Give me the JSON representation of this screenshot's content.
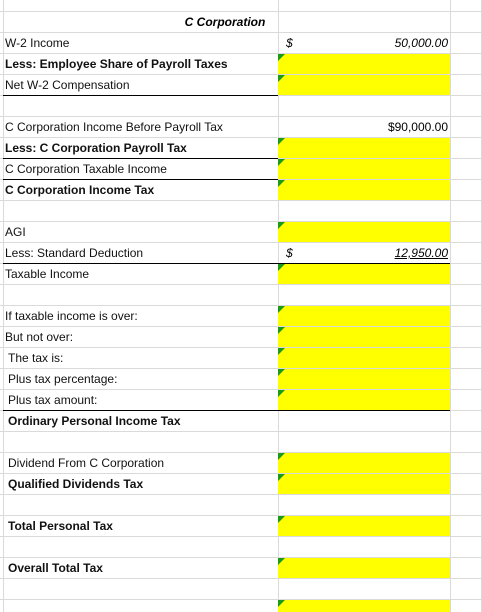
{
  "title": "C Corporation",
  "rows": [
    {
      "label": "W-2 Income",
      "currency": "$",
      "amount": "50,000.00"
    },
    {
      "label": "Less: Employee Share of Payroll Taxes"
    },
    {
      "label": "Net W-2 Compensation"
    },
    {
      "label": "C Corporation Income Before Payroll Tax",
      "amount": "$90,000.00"
    },
    {
      "label": "Less: C Corporation Payroll Tax"
    },
    {
      "label": "C Corporation Taxable Income"
    },
    {
      "label": "C Corporation Income Tax"
    },
    {
      "label": "AGI"
    },
    {
      "label": "Less: Standard Deduction",
      "currency": "$",
      "amount": "12,950.00"
    },
    {
      "label": "Taxable Income"
    },
    {
      "label": "If taxable income is over:"
    },
    {
      "label": "But not over:"
    },
    {
      "label": "The tax is:"
    },
    {
      "label": "Plus tax percentage:"
    },
    {
      "label": "Plus tax amount:"
    },
    {
      "label": "Ordinary Personal Income Tax"
    },
    {
      "label": "Dividend From C Corporation"
    },
    {
      "label": "Qualified Dividends Tax"
    },
    {
      "label": "Total Personal Tax"
    },
    {
      "label": "Overall Total Tax"
    }
  ]
}
